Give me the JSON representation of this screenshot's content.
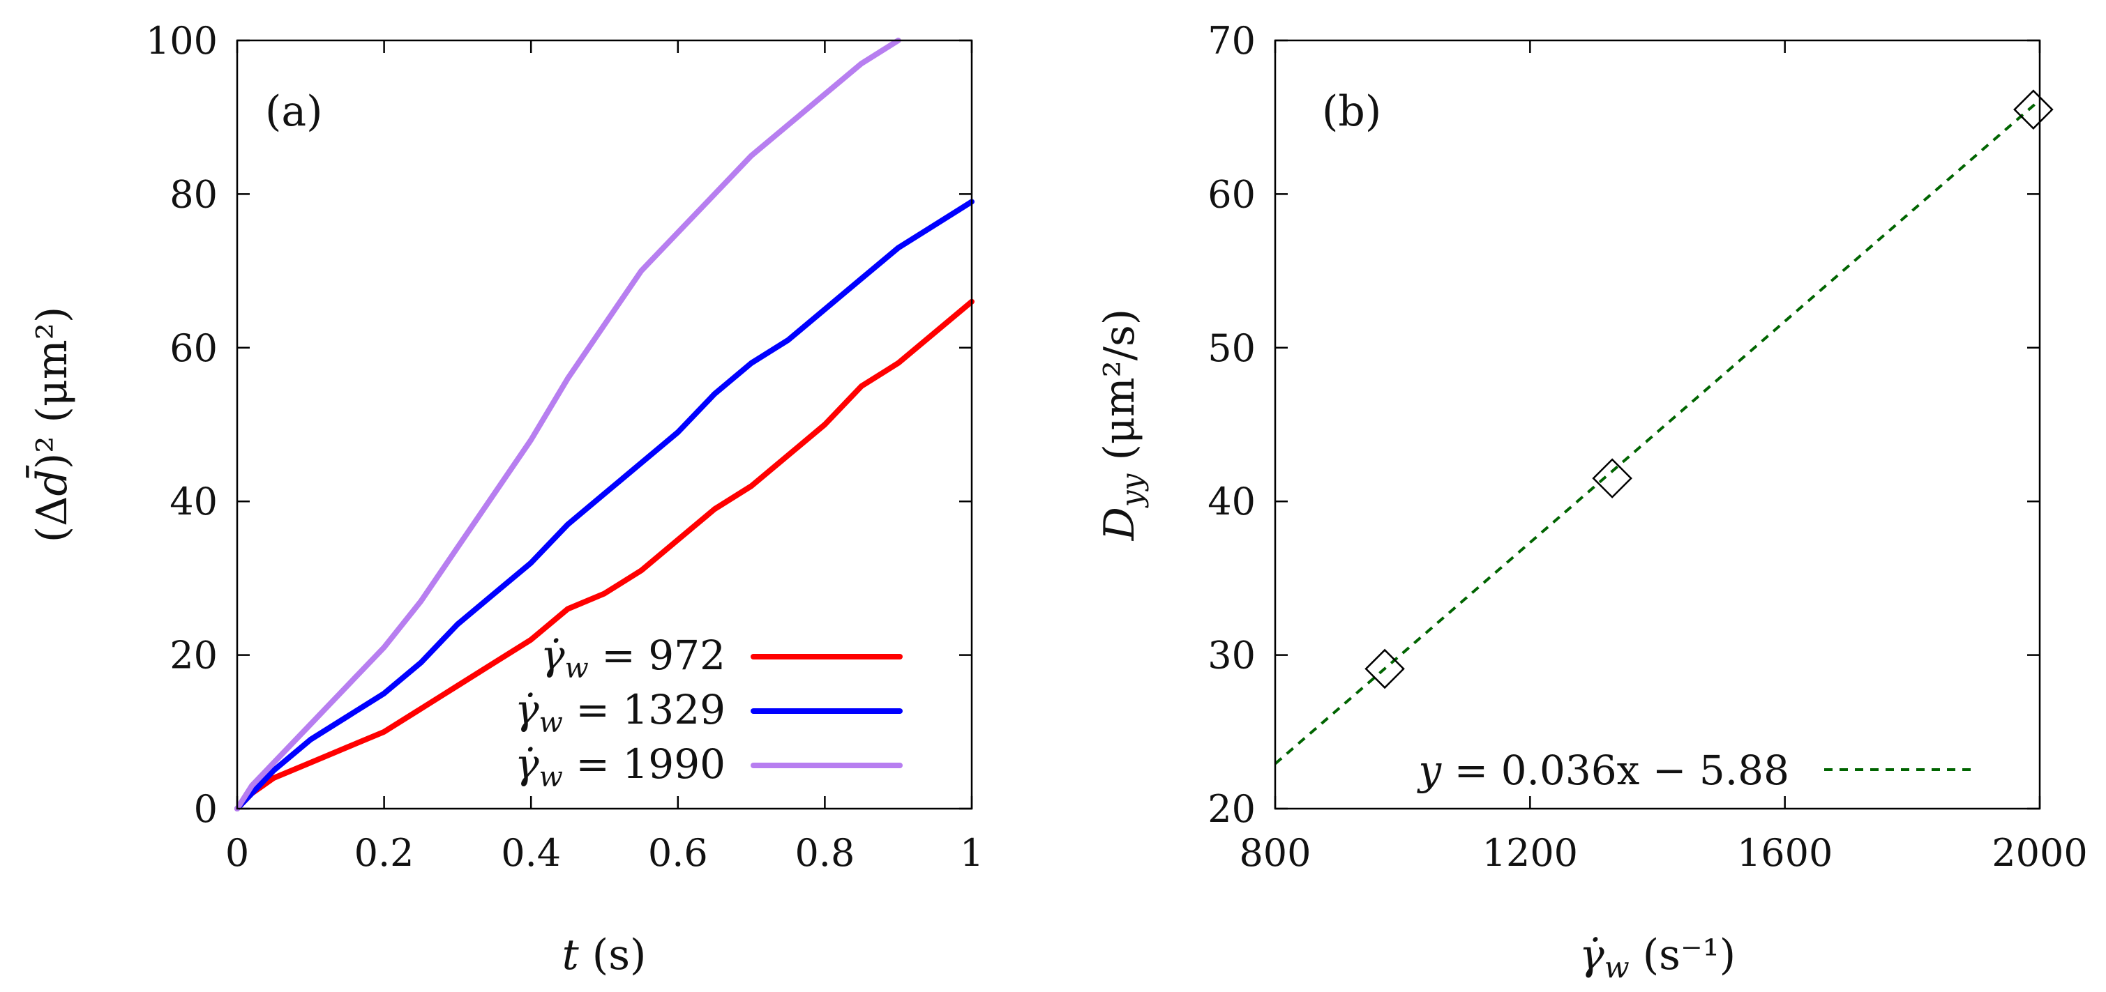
{
  "chart_data": [
    {
      "type": "line",
      "panel_label": "(a)",
      "xlabel": "t (s)",
      "ylabel": "(Δd̄)² (μm²)",
      "xlim": [
        0,
        1
      ],
      "ylim": [
        0,
        100
      ],
      "xticks": [
        0,
        0.2,
        0.4,
        0.6,
        0.8,
        1
      ],
      "xtick_labels": [
        "0",
        "0.2",
        "0.4",
        "0.6",
        "0.8",
        "1"
      ],
      "yticks": [
        0,
        20,
        40,
        60,
        80,
        100
      ],
      "ytick_labels": [
        "0",
        "20",
        "40",
        "60",
        "80",
        "100"
      ],
      "legend_position": "bottom-right",
      "series": [
        {
          "name": "γ̇w = 972",
          "legend_value": "972",
          "color": "#ff0000",
          "x": [
            0,
            0.02,
            0.05,
            0.1,
            0.15,
            0.2,
            0.25,
            0.3,
            0.35,
            0.4,
            0.45,
            0.5,
            0.55,
            0.6,
            0.65,
            0.7,
            0.75,
            0.8,
            0.85,
            0.9,
            0.95,
            1.0
          ],
          "y": [
            0,
            2,
            4,
            6,
            8,
            10,
            13,
            16,
            19,
            22,
            26,
            28,
            31,
            35,
            39,
            42,
            46,
            50,
            55,
            58,
            62,
            66
          ]
        },
        {
          "name": "γ̇w = 1329",
          "legend_value": "1329",
          "color": "#0000ff",
          "x": [
            0,
            0.02,
            0.05,
            0.1,
            0.15,
            0.2,
            0.25,
            0.3,
            0.35,
            0.4,
            0.45,
            0.5,
            0.55,
            0.6,
            0.65,
            0.7,
            0.75,
            0.8,
            0.85,
            0.9,
            0.95,
            1.0
          ],
          "y": [
            0,
            2,
            5,
            9,
            12,
            15,
            19,
            24,
            28,
            32,
            37,
            41,
            45,
            49,
            54,
            58,
            61,
            65,
            69,
            73,
            76,
            79
          ]
        },
        {
          "name": "γ̇w = 1990",
          "legend_value": "1990",
          "color": "#b77ef0",
          "x": [
            0,
            0.02,
            0.05,
            0.1,
            0.15,
            0.2,
            0.25,
            0.3,
            0.35,
            0.4,
            0.45,
            0.5,
            0.55,
            0.6,
            0.65,
            0.7,
            0.75,
            0.8,
            0.85,
            0.9
          ],
          "y": [
            0,
            3,
            6,
            11,
            16,
            21,
            27,
            34,
            41,
            48,
            56,
            63,
            70,
            75,
            80,
            85,
            89,
            93,
            97,
            100
          ]
        }
      ]
    },
    {
      "type": "scatter",
      "panel_label": "(b)",
      "xlabel": "γ̇w (s⁻¹)",
      "ylabel": "Dyy (μm²/s)",
      "xlim": [
        800,
        2000
      ],
      "ylim": [
        20,
        70
      ],
      "xticks": [
        800,
        1200,
        1600,
        2000
      ],
      "xtick_labels": [
        "800",
        "1200",
        "1600",
        "2000"
      ],
      "yticks": [
        20,
        30,
        40,
        50,
        60,
        70
      ],
      "ytick_labels": [
        "20",
        "30",
        "40",
        "50",
        "60",
        "70"
      ],
      "points": {
        "marker": "diamond",
        "x": [
          972,
          1329,
          1990
        ],
        "y": [
          29.1,
          41.5,
          65.5
        ]
      },
      "fit": {
        "slope": 0.036,
        "intercept": -5.88,
        "label": "y = 0.036x − 5.88",
        "label_value": "0.036x − 5.88",
        "color": "#006400",
        "x_range": [
          800,
          2000
        ]
      }
    }
  ]
}
